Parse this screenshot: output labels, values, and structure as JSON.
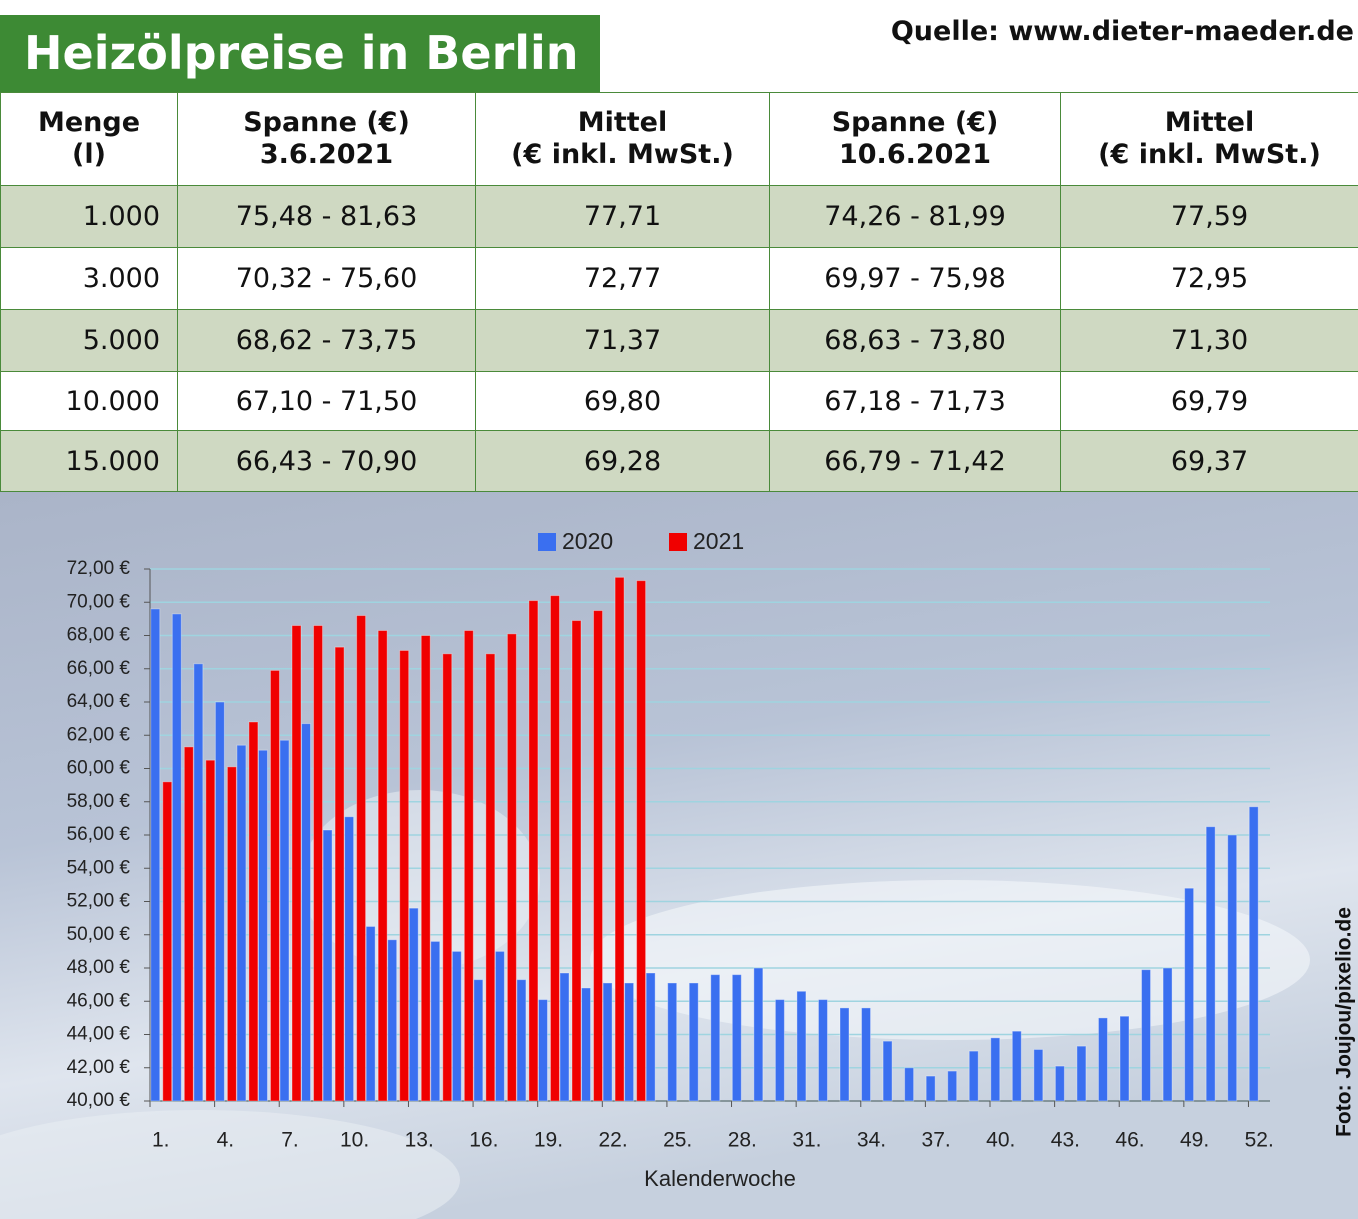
{
  "header": {
    "title": "Heizölpreise in Berlin",
    "source": "Quelle: www.dieter-maeder.de"
  },
  "table": {
    "columns": [
      [
        "Menge",
        "(l)"
      ],
      [
        "Spanne (€)",
        "3.6.2021"
      ],
      [
        "Mittel",
        "(€ inkl. MwSt.)"
      ],
      [
        "Spanne (€)",
        "10.6.2021"
      ],
      [
        "Mittel",
        "(€ inkl. MwSt.)"
      ]
    ],
    "rows": [
      [
        "1.000",
        "75,48 - 81,63",
        "77,71",
        "74,26 - 81,99",
        "77,59"
      ],
      [
        "3.000",
        "70,32 - 75,60",
        "72,77",
        "69,97 - 75,98",
        "72,95"
      ],
      [
        "5.000",
        "68,62 - 73,75",
        "71,37",
        "68,63 - 73,80",
        "71,30"
      ],
      [
        "10.000",
        "67,10 - 71,50",
        "69,80",
        "67,18 - 71,73",
        "69,79"
      ],
      [
        "15.000",
        "66,43 - 70,90",
        "69,28",
        "66,79 - 71,42",
        "69,37"
      ]
    ]
  },
  "chart_data": {
    "type": "bar",
    "x_label": "Kalenderwoche",
    "categories": [
      "1.",
      null,
      null,
      "4.",
      null,
      null,
      "7.",
      null,
      null,
      "10.",
      null,
      null,
      "13.",
      null,
      null,
      "16.",
      null,
      null,
      "19.",
      null,
      null,
      "22.",
      null,
      null,
      "25.",
      null,
      null,
      "28.",
      null,
      null,
      "31.",
      null,
      null,
      "34.",
      null,
      null,
      "37.",
      null,
      null,
      "40.",
      null,
      null,
      "43.",
      null,
      null,
      "46.",
      null,
      null,
      "49.",
      null,
      null,
      "52."
    ],
    "series": [
      {
        "name": "2020",
        "color": "#3a6ff0",
        "values": [
          69.6,
          69.3,
          66.3,
          64.0,
          61.4,
          61.1,
          61.7,
          62.7,
          56.3,
          57.1,
          50.5,
          49.7,
          51.6,
          49.6,
          49.0,
          47.3,
          49.0,
          47.3,
          46.1,
          47.7,
          46.8,
          47.1,
          47.1,
          47.7,
          47.1,
          47.1,
          47.6,
          47.6,
          48.0,
          46.1,
          46.6,
          46.1,
          45.6,
          45.6,
          43.6,
          42.0,
          41.5,
          41.8,
          43.0,
          43.8,
          44.2,
          43.1,
          42.1,
          43.3,
          45.0,
          45.1,
          47.9,
          48.0,
          52.8,
          56.5,
          56.0,
          57.7
        ]
      },
      {
        "name": "2021",
        "color": "#f00000",
        "values": [
          59.2,
          61.3,
          60.5,
          60.1,
          62.8,
          65.9,
          68.6,
          68.6,
          67.3,
          69.2,
          68.3,
          67.1,
          68.0,
          66.9,
          68.3,
          66.9,
          68.1,
          70.1,
          70.4,
          68.9,
          69.5,
          71.5,
          71.3,
          null,
          null,
          null,
          null,
          null,
          null,
          null,
          null,
          null,
          null,
          null,
          null,
          null,
          null,
          null,
          null,
          null,
          null,
          null,
          null,
          null,
          null,
          null,
          null,
          null,
          null,
          null,
          null,
          null
        ]
      }
    ],
    "ylim": [
      40,
      72
    ],
    "yticks": [
      {
        "value": 40,
        "label": "40,00 €"
      },
      {
        "value": 42,
        "label": "42,00 €"
      },
      {
        "value": 44,
        "label": "44,00 €"
      },
      {
        "value": 46,
        "label": "46,00 €"
      },
      {
        "value": 48,
        "label": "48,00 €"
      },
      {
        "value": 50,
        "label": "50,00 €"
      },
      {
        "value": 52,
        "label": "52,00 €"
      },
      {
        "value": 54,
        "label": "54,00 €"
      },
      {
        "value": 56,
        "label": "56,00 €"
      },
      {
        "value": 58,
        "label": "58,00 €"
      },
      {
        "value": 60,
        "label": "60,00 €"
      },
      {
        "value": 62,
        "label": "62,00 €"
      },
      {
        "value": 64,
        "label": "64,00 €"
      },
      {
        "value": 66,
        "label": "66,00 €"
      },
      {
        "value": 68,
        "label": "68,00 €"
      },
      {
        "value": 70,
        "label": "70,00 €"
      },
      {
        "value": 72,
        "label": "72,00 €"
      }
    ],
    "grid": true,
    "legend": "top"
  },
  "credit": "Foto: Joujou/pixelio.de"
}
